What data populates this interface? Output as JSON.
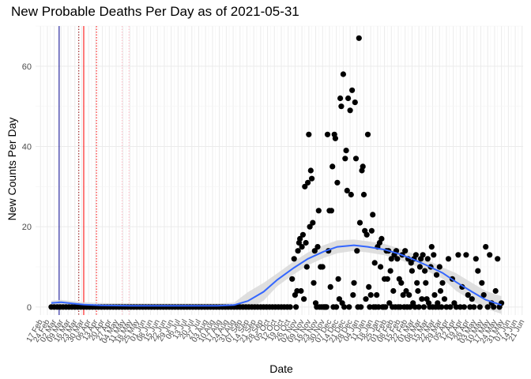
{
  "chart_data": {
    "type": "scatter",
    "title": "New Probable Deaths Per Day as of 2021-05-31",
    "xlabel": "Date",
    "ylabel": "New Counts Per Day",
    "x_range": [
      "2020-02-12",
      "2021-06-22"
    ],
    "ylim": [
      -2,
      70
    ],
    "y_ticks": [
      0,
      20,
      40,
      60
    ],
    "x_tick_labels": [
      "17 Feb",
      "24 Feb",
      "02 Mar",
      "09 Mar",
      "16 Mar",
      "23 Mar",
      "30 Mar",
      "06 Apr",
      "13 Apr",
      "20 Apr",
      "27 Apr",
      "04 May",
      "11 May",
      "18 May",
      "25 May",
      "01 Jun",
      "08 Jun",
      "15 Jun",
      "22 Jun",
      "29 Jun",
      "06 Jul",
      "13 Jul",
      "20 Jul",
      "27 Jul",
      "03 Aug",
      "10 Aug",
      "17 Aug",
      "24 Aug",
      "31 Aug",
      "07 Sep",
      "14 Sep",
      "21 Sep",
      "28 Sep",
      "05 Oct",
      "12 Oct",
      "19 Oct",
      "26 Oct",
      "02 Nov",
      "09 Nov",
      "16 Nov",
      "23 Nov",
      "30 Nov",
      "07 Dec",
      "14 Dec",
      "21 Dec",
      "28 Dec",
      "04 Jan",
      "11 Jan",
      "18 Jan",
      "25 Jan",
      "01 Feb",
      "08 Feb",
      "15 Feb",
      "22 Feb",
      "01 Mar",
      "08 Mar",
      "15 Mar",
      "22 Mar",
      "29 Mar",
      "05 Apr",
      "12 Apr",
      "19 Apr",
      "26 Apr",
      "03 May",
      "10 May",
      "17 May",
      "24 May",
      "31 May",
      "07 Jun",
      "14 Jun",
      "21 Jun"
    ],
    "grid": true,
    "vlines": [
      {
        "date": "2020-03-07",
        "color": "#00008b",
        "style": "solid"
      },
      {
        "date": "2020-03-27",
        "color": "#8b0000",
        "style": "dotted"
      },
      {
        "date": "2020-04-01",
        "color": "#ff0000",
        "style": "solid"
      },
      {
        "date": "2020-04-14",
        "color": "#ff0000",
        "style": "dotted"
      },
      {
        "date": "2020-05-10",
        "color": "#ffb6c1",
        "style": "dotted"
      },
      {
        "date": "2020-05-17",
        "color": "#ffb6c1",
        "style": "dotted"
      }
    ],
    "points": [
      {
        "x": "2020-02-28",
        "y": 0
      },
      {
        "x": "2020-03-02",
        "y": 0
      },
      {
        "x": "2020-03-05",
        "y": 0
      },
      {
        "x": "2020-03-08",
        "y": 0
      },
      {
        "x": "2020-03-11",
        "y": 0
      },
      {
        "x": "2020-03-14",
        "y": 0
      },
      {
        "x": "2020-03-17",
        "y": 0
      },
      {
        "x": "2020-03-20",
        "y": 0
      },
      {
        "x": "2020-03-23",
        "y": 0
      },
      {
        "x": "2020-03-26",
        "y": 0
      },
      {
        "x": "2020-03-29",
        "y": 0
      },
      {
        "x": "2020-04-01",
        "y": 0
      },
      {
        "x": "2020-04-04",
        "y": 0
      },
      {
        "x": "2020-04-07",
        "y": 0
      },
      {
        "x": "2020-04-10",
        "y": 0
      },
      {
        "x": "2020-04-13",
        "y": 0
      },
      {
        "x": "2020-04-16",
        "y": 0
      },
      {
        "x": "2020-04-19",
        "y": 0
      },
      {
        "x": "2020-04-22",
        "y": 0
      },
      {
        "x": "2020-04-25",
        "y": 0
      },
      {
        "x": "2020-04-28",
        "y": 0
      },
      {
        "x": "2020-05-01",
        "y": 0
      },
      {
        "x": "2020-05-04",
        "y": 0
      },
      {
        "x": "2020-05-07",
        "y": 0
      },
      {
        "x": "2020-05-10",
        "y": 0
      },
      {
        "x": "2020-05-13",
        "y": 0
      },
      {
        "x": "2020-05-16",
        "y": 0
      },
      {
        "x": "2020-05-19",
        "y": 0
      },
      {
        "x": "2020-05-22",
        "y": 0
      },
      {
        "x": "2020-05-25",
        "y": 0
      },
      {
        "x": "2020-05-28",
        "y": 0
      },
      {
        "x": "2020-05-31",
        "y": 0
      },
      {
        "x": "2020-06-03",
        "y": 0
      },
      {
        "x": "2020-06-06",
        "y": 0
      },
      {
        "x": "2020-06-09",
        "y": 0
      },
      {
        "x": "2020-06-12",
        "y": 0
      },
      {
        "x": "2020-06-15",
        "y": 0
      },
      {
        "x": "2020-06-18",
        "y": 0
      },
      {
        "x": "2020-06-21",
        "y": 0
      },
      {
        "x": "2020-06-24",
        "y": 0
      },
      {
        "x": "2020-06-27",
        "y": 0
      },
      {
        "x": "2020-06-30",
        "y": 0
      },
      {
        "x": "2020-07-03",
        "y": 0
      },
      {
        "x": "2020-07-06",
        "y": 0
      },
      {
        "x": "2020-07-09",
        "y": 0
      },
      {
        "x": "2020-07-12",
        "y": 0
      },
      {
        "x": "2020-07-15",
        "y": 0
      },
      {
        "x": "2020-07-18",
        "y": 0
      },
      {
        "x": "2020-07-21",
        "y": 0
      },
      {
        "x": "2020-07-24",
        "y": 0
      },
      {
        "x": "2020-07-27",
        "y": 0
      },
      {
        "x": "2020-07-30",
        "y": 0
      },
      {
        "x": "2020-08-02",
        "y": 0
      },
      {
        "x": "2020-08-05",
        "y": 0
      },
      {
        "x": "2020-08-08",
        "y": 0
      },
      {
        "x": "2020-08-11",
        "y": 0
      },
      {
        "x": "2020-08-14",
        "y": 0
      },
      {
        "x": "2020-08-17",
        "y": 0
      },
      {
        "x": "2020-08-20",
        "y": 0
      },
      {
        "x": "2020-08-23",
        "y": 0
      },
      {
        "x": "2020-08-26",
        "y": 0
      },
      {
        "x": "2020-08-29",
        "y": 0
      },
      {
        "x": "2020-09-01",
        "y": 0
      },
      {
        "x": "2020-09-04",
        "y": 0
      },
      {
        "x": "2020-09-07",
        "y": 0
      },
      {
        "x": "2020-09-10",
        "y": 0
      },
      {
        "x": "2020-09-13",
        "y": 0
      },
      {
        "x": "2020-09-16",
        "y": 0
      },
      {
        "x": "2020-09-19",
        "y": 0
      },
      {
        "x": "2020-09-22",
        "y": 0
      },
      {
        "x": "2020-09-25",
        "y": 0
      },
      {
        "x": "2020-09-28",
        "y": 0
      },
      {
        "x": "2020-10-01",
        "y": 0
      },
      {
        "x": "2020-10-04",
        "y": 0
      },
      {
        "x": "2020-10-07",
        "y": 0
      },
      {
        "x": "2020-10-10",
        "y": 0
      },
      {
        "x": "2020-10-13",
        "y": 0
      },
      {
        "x": "2020-10-16",
        "y": 0
      },
      {
        "x": "2020-10-19",
        "y": 0
      },
      {
        "x": "2020-10-22",
        "y": 0
      },
      {
        "x": "2020-10-25",
        "y": 0
      },
      {
        "x": "2020-10-28",
        "y": 0
      },
      {
        "x": "2020-10-30",
        "y": 7
      },
      {
        "x": "2020-11-01",
        "y": 12
      },
      {
        "x": "2020-11-02",
        "y": 3
      },
      {
        "x": "2020-11-03",
        "y": 0
      },
      {
        "x": "2020-11-04",
        "y": 4
      },
      {
        "x": "2020-11-05",
        "y": 14
      },
      {
        "x": "2020-11-06",
        "y": 16
      },
      {
        "x": "2020-11-07",
        "y": 17
      },
      {
        "x": "2020-11-08",
        "y": 4
      },
      {
        "x": "2020-11-09",
        "y": 15
      },
      {
        "x": "2020-11-10",
        "y": 18
      },
      {
        "x": "2020-11-11",
        "y": 2
      },
      {
        "x": "2020-11-12",
        "y": 30
      },
      {
        "x": "2020-11-13",
        "y": 16
      },
      {
        "x": "2020-11-14",
        "y": 10
      },
      {
        "x": "2020-11-15",
        "y": 31
      },
      {
        "x": "2020-11-16",
        "y": 43
      },
      {
        "x": "2020-11-17",
        "y": 20
      },
      {
        "x": "2020-11-18",
        "y": 34
      },
      {
        "x": "2020-11-19",
        "y": 32
      },
      {
        "x": "2020-11-20",
        "y": 21
      },
      {
        "x": "2020-11-21",
        "y": 6
      },
      {
        "x": "2020-11-22",
        "y": 14
      },
      {
        "x": "2020-11-23",
        "y": 1
      },
      {
        "x": "2020-11-24",
        "y": 0
      },
      {
        "x": "2020-11-25",
        "y": 15
      },
      {
        "x": "2020-11-26",
        "y": 24
      },
      {
        "x": "2020-11-27",
        "y": 0
      },
      {
        "x": "2020-11-28",
        "y": 10
      },
      {
        "x": "2020-11-29",
        "y": 0
      },
      {
        "x": "2020-11-30",
        "y": 10
      },
      {
        "x": "2020-12-01",
        "y": 0
      },
      {
        "x": "2020-12-02",
        "y": 0
      },
      {
        "x": "2020-12-03",
        "y": 0
      },
      {
        "x": "2020-12-04",
        "y": 0
      },
      {
        "x": "2020-12-05",
        "y": 43
      },
      {
        "x": "2020-12-06",
        "y": 14
      },
      {
        "x": "2020-12-07",
        "y": 24
      },
      {
        "x": "2020-12-08",
        "y": 5
      },
      {
        "x": "2020-12-09",
        "y": 24
      },
      {
        "x": "2020-12-10",
        "y": 35
      },
      {
        "x": "2020-12-11",
        "y": 0
      },
      {
        "x": "2020-12-12",
        "y": 43
      },
      {
        "x": "2020-12-13",
        "y": 42
      },
      {
        "x": "2020-12-14",
        "y": 0
      },
      {
        "x": "2020-12-15",
        "y": 31
      },
      {
        "x": "2020-12-16",
        "y": 7
      },
      {
        "x": "2020-12-17",
        "y": 2
      },
      {
        "x": "2020-12-18",
        "y": 52
      },
      {
        "x": "2020-12-19",
        "y": 50
      },
      {
        "x": "2020-12-20",
        "y": 1
      },
      {
        "x": "2020-12-21",
        "y": 58
      },
      {
        "x": "2020-12-22",
        "y": 0
      },
      {
        "x": "2020-12-23",
        "y": 37
      },
      {
        "x": "2020-12-24",
        "y": 39
      },
      {
        "x": "2020-12-25",
        "y": 29
      },
      {
        "x": "2020-12-26",
        "y": 52
      },
      {
        "x": "2020-12-27",
        "y": 0
      },
      {
        "x": "2020-12-28",
        "y": 49
      },
      {
        "x": "2020-12-29",
        "y": 28
      },
      {
        "x": "2020-12-30",
        "y": 54
      },
      {
        "x": "2020-12-31",
        "y": 3
      },
      {
        "x": "2021-01-01",
        "y": 6
      },
      {
        "x": "2021-01-02",
        "y": 51
      },
      {
        "x": "2021-01-03",
        "y": 37
      },
      {
        "x": "2021-01-04",
        "y": 14
      },
      {
        "x": "2021-01-05",
        "y": 0
      },
      {
        "x": "2021-01-06",
        "y": 67
      },
      {
        "x": "2021-01-07",
        "y": 21
      },
      {
        "x": "2021-01-08",
        "y": 0
      },
      {
        "x": "2021-01-09",
        "y": 34
      },
      {
        "x": "2021-01-10",
        "y": 35
      },
      {
        "x": "2021-01-11",
        "y": 28
      },
      {
        "x": "2021-01-12",
        "y": 19
      },
      {
        "x": "2021-01-13",
        "y": 2
      },
      {
        "x": "2021-01-14",
        "y": 18
      },
      {
        "x": "2021-01-15",
        "y": 43
      },
      {
        "x": "2021-01-16",
        "y": 5
      },
      {
        "x": "2021-01-17",
        "y": 0
      },
      {
        "x": "2021-01-18",
        "y": 3
      },
      {
        "x": "2021-01-19",
        "y": 19
      },
      {
        "x": "2021-01-20",
        "y": 23
      },
      {
        "x": "2021-01-21",
        "y": 0
      },
      {
        "x": "2021-01-22",
        "y": 11
      },
      {
        "x": "2021-01-23",
        "y": 0
      },
      {
        "x": "2021-01-24",
        "y": 3
      },
      {
        "x": "2021-01-25",
        "y": 15
      },
      {
        "x": "2021-01-26",
        "y": 0
      },
      {
        "x": "2021-01-27",
        "y": 16
      },
      {
        "x": "2021-01-28",
        "y": 10
      },
      {
        "x": "2021-01-29",
        "y": 17
      },
      {
        "x": "2021-01-30",
        "y": 0
      },
      {
        "x": "2021-01-31",
        "y": 0
      },
      {
        "x": "2021-02-01",
        "y": 7
      },
      {
        "x": "2021-02-02",
        "y": 0
      },
      {
        "x": "2021-02-03",
        "y": 14
      },
      {
        "x": "2021-02-04",
        "y": 7
      },
      {
        "x": "2021-02-05",
        "y": 14
      },
      {
        "x": "2021-02-06",
        "y": 1
      },
      {
        "x": "2021-02-07",
        "y": 9
      },
      {
        "x": "2021-02-08",
        "y": 12
      },
      {
        "x": "2021-02-09",
        "y": 0
      },
      {
        "x": "2021-02-10",
        "y": 4
      },
      {
        "x": "2021-02-11",
        "y": 13
      },
      {
        "x": "2021-02-12",
        "y": 0
      },
      {
        "x": "2021-02-13",
        "y": 14
      },
      {
        "x": "2021-02-14",
        "y": 12
      },
      {
        "x": "2021-02-15",
        "y": 0
      },
      {
        "x": "2021-02-16",
        "y": 7
      },
      {
        "x": "2021-02-17",
        "y": 0
      },
      {
        "x": "2021-02-18",
        "y": 6
      },
      {
        "x": "2021-02-19",
        "y": 13
      },
      {
        "x": "2021-02-20",
        "y": 3
      },
      {
        "x": "2021-02-21",
        "y": 0
      },
      {
        "x": "2021-02-22",
        "y": 14
      },
      {
        "x": "2021-02-23",
        "y": 4
      },
      {
        "x": "2021-02-24",
        "y": 0
      },
      {
        "x": "2021-02-25",
        "y": 12
      },
      {
        "x": "2021-02-26",
        "y": 3
      },
      {
        "x": "2021-02-27",
        "y": 0
      },
      {
        "x": "2021-02-28",
        "y": 11
      },
      {
        "x": "2021-03-01",
        "y": 9
      },
      {
        "x": "2021-03-02",
        "y": 1
      },
      {
        "x": "2021-03-03",
        "y": 12
      },
      {
        "x": "2021-03-04",
        "y": 0
      },
      {
        "x": "2021-03-05",
        "y": 13
      },
      {
        "x": "2021-03-06",
        "y": 6
      },
      {
        "x": "2021-03-07",
        "y": 4
      },
      {
        "x": "2021-03-08",
        "y": 0
      },
      {
        "x": "2021-03-09",
        "y": 10
      },
      {
        "x": "2021-03-10",
        "y": 12
      },
      {
        "x": "2021-03-11",
        "y": 2
      },
      {
        "x": "2021-03-12",
        "y": 13
      },
      {
        "x": "2021-03-13",
        "y": 0
      },
      {
        "x": "2021-03-14",
        "y": 9
      },
      {
        "x": "2021-03-15",
        "y": 6
      },
      {
        "x": "2021-03-16",
        "y": 2
      },
      {
        "x": "2021-03-17",
        "y": 12
      },
      {
        "x": "2021-03-18",
        "y": 1
      },
      {
        "x": "2021-03-19",
        "y": 0
      },
      {
        "x": "2021-03-20",
        "y": 10
      },
      {
        "x": "2021-03-21",
        "y": 15
      },
      {
        "x": "2021-03-22",
        "y": 0
      },
      {
        "x": "2021-03-23",
        "y": 13
      },
      {
        "x": "2021-03-24",
        "y": 3
      },
      {
        "x": "2021-03-25",
        "y": 0
      },
      {
        "x": "2021-03-26",
        "y": 8
      },
      {
        "x": "2021-03-27",
        "y": 1
      },
      {
        "x": "2021-03-28",
        "y": 0
      },
      {
        "x": "2021-03-29",
        "y": 10
      },
      {
        "x": "2021-03-30",
        "y": 4
      },
      {
        "x": "2021-03-31",
        "y": 0
      },
      {
        "x": "2021-04-01",
        "y": 6
      },
      {
        "x": "2021-04-03",
        "y": 2
      },
      {
        "x": "2021-04-05",
        "y": 0
      },
      {
        "x": "2021-04-07",
        "y": 12
      },
      {
        "x": "2021-04-09",
        "y": 0
      },
      {
        "x": "2021-04-11",
        "y": 7
      },
      {
        "x": "2021-04-13",
        "y": 1
      },
      {
        "x": "2021-04-15",
        "y": 0
      },
      {
        "x": "2021-04-17",
        "y": 13
      },
      {
        "x": "2021-04-19",
        "y": 0
      },
      {
        "x": "2021-04-21",
        "y": 5
      },
      {
        "x": "2021-04-23",
        "y": 0
      },
      {
        "x": "2021-04-25",
        "y": 13
      },
      {
        "x": "2021-04-27",
        "y": 3
      },
      {
        "x": "2021-04-29",
        "y": 0
      },
      {
        "x": "2021-05-01",
        "y": 2
      },
      {
        "x": "2021-05-03",
        "y": 0
      },
      {
        "x": "2021-05-05",
        "y": 12
      },
      {
        "x": "2021-05-07",
        "y": 9
      },
      {
        "x": "2021-05-09",
        "y": 0
      },
      {
        "x": "2021-05-11",
        "y": 6
      },
      {
        "x": "2021-05-13",
        "y": 3
      },
      {
        "x": "2021-05-15",
        "y": 15
      },
      {
        "x": "2021-05-17",
        "y": 0
      },
      {
        "x": "2021-05-19",
        "y": 13
      },
      {
        "x": "2021-05-21",
        "y": 1
      },
      {
        "x": "2021-05-23",
        "y": 0
      },
      {
        "x": "2021-05-25",
        "y": 4
      },
      {
        "x": "2021-05-27",
        "y": 12
      },
      {
        "x": "2021-05-29",
        "y": 0
      },
      {
        "x": "2021-05-31",
        "y": 1
      }
    ],
    "smooth": [
      {
        "x": "2020-02-28",
        "y": 1.0
      },
      {
        "x": "2020-03-09",
        "y": 1.2
      },
      {
        "x": "2020-03-20",
        "y": 0.9
      },
      {
        "x": "2020-04-01",
        "y": 0.6
      },
      {
        "x": "2020-04-20",
        "y": 0.4
      },
      {
        "x": "2020-05-20",
        "y": 0.3
      },
      {
        "x": "2020-07-01",
        "y": 0.3
      },
      {
        "x": "2020-08-15",
        "y": 0.3
      },
      {
        "x": "2020-09-01",
        "y": 0.5
      },
      {
        "x": "2020-09-15",
        "y": 1.5
      },
      {
        "x": "2020-10-01",
        "y": 3.8
      },
      {
        "x": "2020-10-15",
        "y": 6.8
      },
      {
        "x": "2020-11-01",
        "y": 9.8
      },
      {
        "x": "2020-11-15",
        "y": 12.0
      },
      {
        "x": "2020-12-01",
        "y": 13.8
      },
      {
        "x": "2020-12-15",
        "y": 15.0
      },
      {
        "x": "2021-01-01",
        "y": 15.4
      },
      {
        "x": "2021-01-15",
        "y": 15.0
      },
      {
        "x": "2021-02-01",
        "y": 14.3
      },
      {
        "x": "2021-02-15",
        "y": 13.3
      },
      {
        "x": "2021-03-01",
        "y": 12.0
      },
      {
        "x": "2021-03-15",
        "y": 10.5
      },
      {
        "x": "2021-04-01",
        "y": 8.5
      },
      {
        "x": "2021-04-15",
        "y": 6.2
      },
      {
        "x": "2021-05-01",
        "y": 3.8
      },
      {
        "x": "2021-05-15",
        "y": 1.8
      },
      {
        "x": "2021-05-31",
        "y": 0.5
      }
    ],
    "smooth_color": "#3366ff",
    "ribbon_color": "#d9d9d9"
  }
}
